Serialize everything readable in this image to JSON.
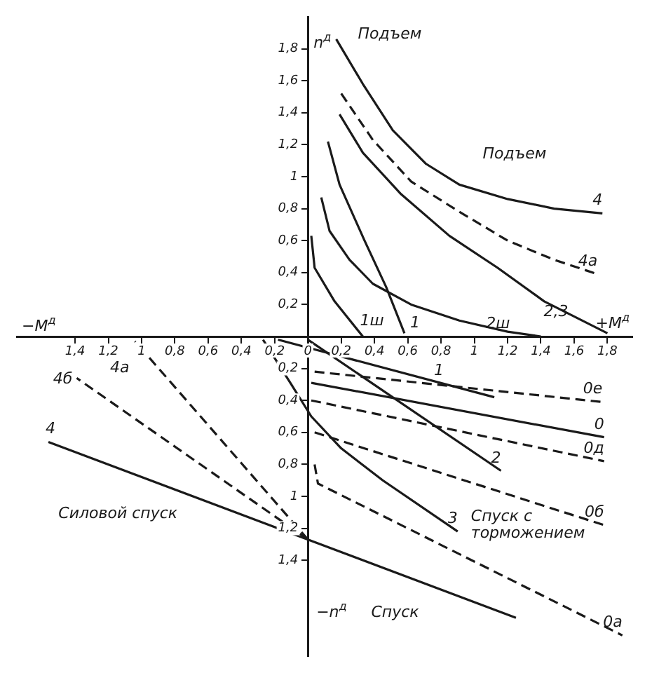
{
  "chart_data": {
    "type": "line",
    "marker": "none",
    "grid": false,
    "legend": false,
    "xlabel": "+M$^{д}$",
    "ylabel": "n$^{д}$",
    "xlim": [
      -1.75,
      1.95
    ],
    "ylim": [
      -2.0,
      2.0
    ],
    "xticks": [
      {
        "value": -1.4,
        "label": "1,4"
      },
      {
        "value": -1.2,
        "label": "1,2"
      },
      {
        "value": -1,
        "label": "1"
      },
      {
        "value": -0.8,
        "label": "0,8"
      },
      {
        "value": -0.6,
        "label": "0,6"
      },
      {
        "value": -0.4,
        "label": "0,4"
      },
      {
        "value": -0.2,
        "label": "0,2"
      },
      {
        "value": 0,
        "label": "0"
      },
      {
        "value": 0.2,
        "label": "0,2"
      },
      {
        "value": 0.4,
        "label": "0,4"
      },
      {
        "value": 0.6,
        "label": "0,6"
      },
      {
        "value": 0.8,
        "label": "0,8"
      },
      {
        "value": 1,
        "label": "1"
      },
      {
        "value": 1.2,
        "label": "1,2"
      },
      {
        "value": 1.4,
        "label": "1,4"
      },
      {
        "value": 1.6,
        "label": "1,6"
      },
      {
        "value": 1.8,
        "label": "1,8"
      }
    ],
    "yticks": [
      {
        "value": -1.4,
        "label": "1,4"
      },
      {
        "value": -1.2,
        "label": "1,2"
      },
      {
        "value": -1,
        "label": "1"
      },
      {
        "value": -0.8,
        "label": "0,8"
      },
      {
        "value": -0.6,
        "label": "0,6"
      },
      {
        "value": -0.4,
        "label": "0,4"
      },
      {
        "value": -0.2,
        "label": "0,2"
      },
      {
        "value": 0.2,
        "label": "0,2"
      },
      {
        "value": 0.4,
        "label": "0,4"
      },
      {
        "value": 0.6,
        "label": "0,6"
      },
      {
        "value": 0.8,
        "label": "0,8"
      },
      {
        "value": 1,
        "label": "1"
      },
      {
        "value": 1.2,
        "label": "1,2"
      },
      {
        "value": 1.4,
        "label": "1,4"
      },
      {
        "value": 1.6,
        "label": "1,6"
      },
      {
        "value": 1.8,
        "label": "1,8"
      }
    ],
    "series": [
      {
        "name": "4",
        "color": "#1a1a1a",
        "line_style": "solid",
        "x": [
          0.17,
          0.33,
          0.51,
          0.71,
          0.91,
          1.2,
          1.48,
          1.77
        ],
        "values": [
          1.86,
          1.58,
          1.29,
          1.08,
          0.95,
          0.86,
          0.8,
          0.77
        ]
      },
      {
        "name": "4а",
        "color": "#1a1a1a",
        "line_style": "dashed",
        "x": [
          0.2,
          0.39,
          0.62,
          0.91,
          1.2,
          1.48,
          1.74
        ],
        "values": [
          1.52,
          1.23,
          0.97,
          0.78,
          0.6,
          0.48,
          0.39
        ]
      },
      {
        "name": "2,3",
        "color": "#1a1a1a",
        "line_style": "solid",
        "x": [
          0.19,
          0.33,
          0.56,
          0.85,
          1.14,
          1.42,
          1.8
        ],
        "values": [
          1.39,
          1.15,
          0.89,
          0.63,
          0.43,
          0.22,
          0.02
        ]
      },
      {
        "name": "2ш",
        "color": "#1a1a1a",
        "line_style": "solid",
        "x": [
          0.08,
          0.13,
          0.25,
          0.39,
          0.62,
          0.91,
          1.2,
          1.4
        ],
        "values": [
          0.87,
          0.66,
          0.48,
          0.33,
          0.2,
          0.1,
          0.03,
          0
        ]
      },
      {
        "name": "1ш",
        "color": "#1a1a1a",
        "line_style": "solid",
        "x": [
          0.02,
          0.04,
          0.16,
          0.33
        ],
        "values": [
          0.63,
          0.43,
          0.22,
          0
        ]
      },
      {
        "name": "1",
        "color": "#1a1a1a",
        "line_style": "solid",
        "x": [
          0.12,
          0.19,
          0.34,
          0.47,
          0.58
        ],
        "values": [
          1.22,
          0.95,
          0.6,
          0.31,
          0.02
        ]
      },
      {
        "name": "1",
        "color": "#1a1a1a",
        "line_style": "solid",
        "x": [
          -0.18,
          1.12
        ],
        "values": [
          -0.02,
          -0.38
        ]
      },
      {
        "name": "0е",
        "color": "#1a1a1a",
        "line_style": "dashed",
        "x": [
          0.04,
          1.77
        ],
        "values": [
          -0.22,
          -0.41
        ]
      },
      {
        "name": "0",
        "color": "#1a1a1a",
        "line_style": "solid",
        "x": [
          0.02,
          1.78
        ],
        "values": [
          -0.29,
          -0.63
        ]
      },
      {
        "name": "0д",
        "color": "#1a1a1a",
        "line_style": "dashed",
        "x": [
          0.02,
          1.78
        ],
        "values": [
          -0.4,
          -0.78
        ]
      },
      {
        "name": "2",
        "color": "#1a1a1a",
        "line_style": "solid",
        "x": [
          0,
          1.16
        ],
        "values": [
          -0.02,
          -0.84
        ]
      },
      {
        "name": "3",
        "color": "#1a1a1a",
        "line_style": "solid",
        "x": [
          -0.27,
          -0.1,
          0.02,
          0.2,
          0.45,
          0.9
        ],
        "values": [
          -0.02,
          -0.3,
          -0.5,
          -0.7,
          -0.9,
          -1.22
        ]
      },
      {
        "name": "0б",
        "color": "#1a1a1a",
        "line_style": "dashed",
        "x": [
          0.04,
          1.78
        ],
        "values": [
          -0.6,
          -1.18
        ]
      },
      {
        "name": "0а",
        "color": "#1a1a1a",
        "line_style": "dashed",
        "x": [
          0.04,
          0.06,
          1.89
        ],
        "values": [
          -0.8,
          -0.92,
          -1.87
        ]
      },
      {
        "name": "4",
        "color": "#1a1a1a",
        "line_style": "solid",
        "x": [
          1.25,
          -1.56
        ],
        "values": [
          -1.76,
          -0.66
        ]
      },
      {
        "name": "4а",
        "color": "#1a1a1a",
        "line_style": "dashed",
        "x": [
          0,
          -1.04
        ],
        "values": [
          -1.27,
          -0.03
        ]
      },
      {
        "name": "4б",
        "color": "#1a1a1a",
        "line_style": "dashed",
        "x": [
          0,
          -1.39
        ],
        "values": [
          -1.27,
          -0.26
        ]
      }
    ],
    "annotations": [
      "Подъем",
      "Подъем",
      "−M$^{д}$",
      "−n$^{д}$",
      "Спуск",
      "Силовой спуск",
      "Спуск с торможением"
    ]
  }
}
